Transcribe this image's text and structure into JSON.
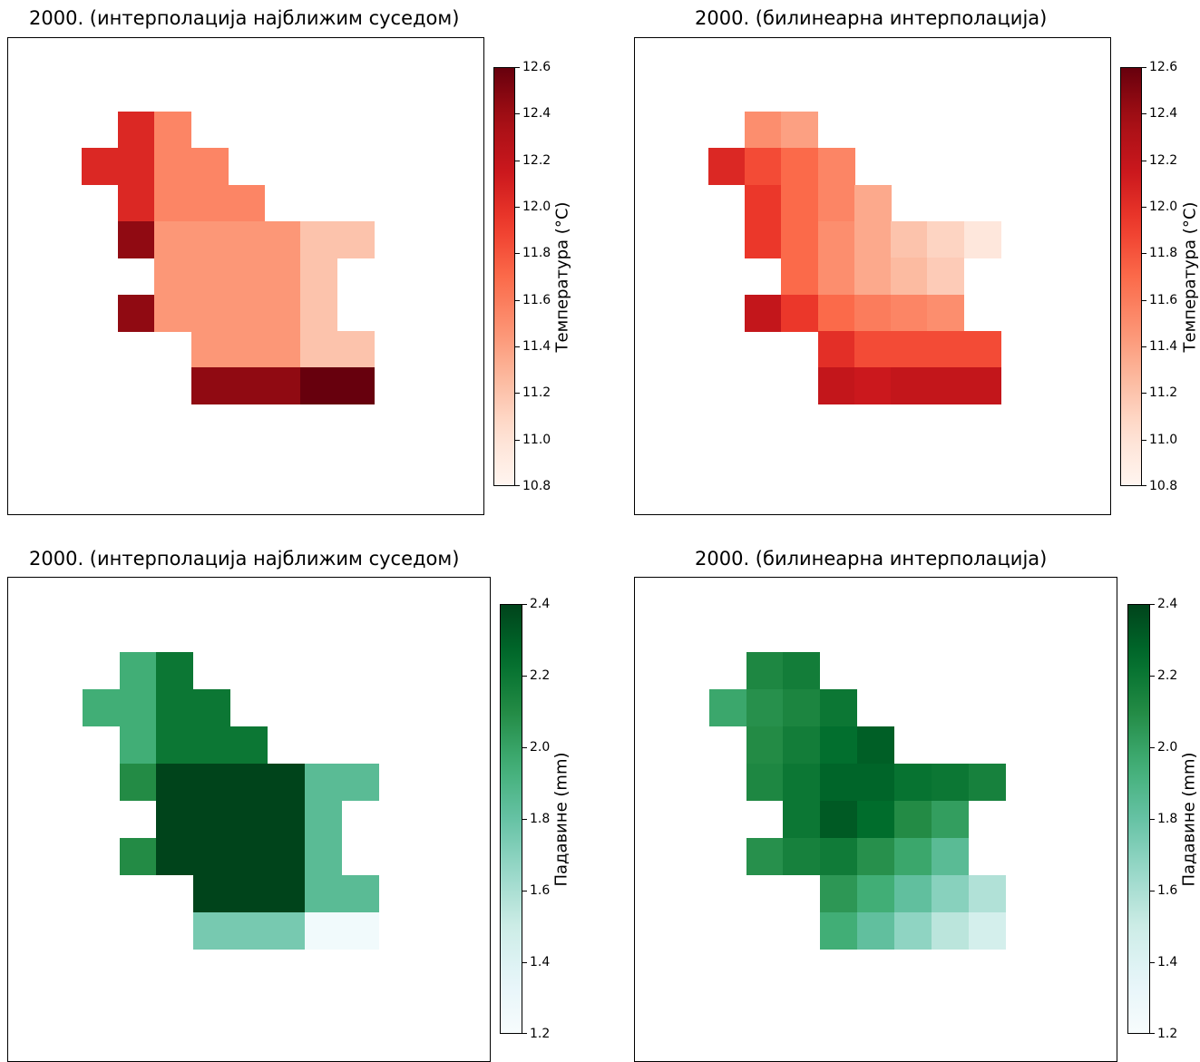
{
  "chart_data": [
    {
      "id": "temp-nn",
      "type": "heatmap",
      "title": "2000. (интерполација најближим суседом)",
      "colorbar_label": "Температура (°C)",
      "colormap": "Reds",
      "vmin": 10.8,
      "vmax": 12.6,
      "colorbar_ticks": [
        "10.8",
        "11.0",
        "11.2",
        "11.4",
        "11.6",
        "11.8",
        "12.0",
        "12.2",
        "12.4",
        "12.6"
      ],
      "grid": [
        [
          null,
          null,
          null,
          null,
          null,
          null,
          null,
          null,
          null,
          null,
          null,
          null,
          null
        ],
        [
          null,
          null,
          null,
          null,
          null,
          null,
          null,
          null,
          null,
          null,
          null,
          null,
          null
        ],
        [
          null,
          null,
          null,
          12.05,
          11.55,
          null,
          null,
          null,
          null,
          null,
          null,
          null,
          null
        ],
        [
          null,
          null,
          12.05,
          12.05,
          11.55,
          11.55,
          null,
          null,
          null,
          null,
          null,
          null,
          null
        ],
        [
          null,
          null,
          null,
          12.05,
          11.55,
          11.55,
          11.55,
          null,
          null,
          null,
          null,
          null,
          null
        ],
        [
          null,
          null,
          null,
          12.45,
          11.45,
          11.45,
          11.45,
          11.45,
          11.2,
          11.2,
          null,
          null,
          null
        ],
        [
          null,
          null,
          null,
          null,
          11.45,
          11.45,
          11.45,
          11.45,
          11.2,
          null,
          null,
          null,
          null
        ],
        [
          null,
          null,
          null,
          12.45,
          11.45,
          11.45,
          11.45,
          11.45,
          11.2,
          null,
          null,
          null,
          null
        ],
        [
          null,
          null,
          null,
          null,
          null,
          11.45,
          11.45,
          11.45,
          11.2,
          11.2,
          null,
          null,
          null
        ],
        [
          null,
          null,
          null,
          null,
          null,
          12.45,
          12.45,
          12.45,
          12.6,
          12.6,
          null,
          null,
          null
        ],
        [
          null,
          null,
          null,
          null,
          null,
          null,
          null,
          null,
          null,
          null,
          null,
          null,
          null
        ],
        [
          null,
          null,
          null,
          null,
          null,
          null,
          null,
          null,
          null,
          null,
          null,
          null,
          null
        ],
        [
          null,
          null,
          null,
          null,
          null,
          null,
          null,
          null,
          null,
          null,
          null,
          null,
          null
        ]
      ]
    },
    {
      "id": "temp-bl",
      "type": "heatmap",
      "title": "2000. (билинеарна интерполација)",
      "colorbar_label": "Температура (°C)",
      "colormap": "Reds",
      "vmin": 10.8,
      "vmax": 12.6,
      "colorbar_ticks": [
        "10.8",
        "11.0",
        "11.2",
        "11.4",
        "11.6",
        "11.8",
        "12.0",
        "12.2",
        "12.4",
        "12.6"
      ],
      "grid": [
        [
          null,
          null,
          null,
          null,
          null,
          null,
          null,
          null,
          null,
          null,
          null,
          null,
          null
        ],
        [
          null,
          null,
          null,
          null,
          null,
          null,
          null,
          null,
          null,
          null,
          null,
          null,
          null
        ],
        [
          null,
          null,
          null,
          11.5,
          11.4,
          null,
          null,
          null,
          null,
          null,
          null,
          null,
          null
        ],
        [
          null,
          null,
          12.05,
          11.85,
          11.7,
          11.55,
          null,
          null,
          null,
          null,
          null,
          null,
          null
        ],
        [
          null,
          null,
          null,
          11.95,
          11.7,
          11.55,
          11.35,
          null,
          null,
          null,
          null,
          null,
          null
        ],
        [
          null,
          null,
          null,
          11.95,
          11.7,
          11.5,
          11.35,
          11.2,
          11.1,
          10.95,
          null,
          null,
          null
        ],
        [
          null,
          null,
          null,
          null,
          11.7,
          11.5,
          11.35,
          11.25,
          11.15,
          null,
          null,
          null,
          null
        ],
        [
          null,
          null,
          null,
          12.2,
          11.95,
          11.7,
          11.6,
          11.55,
          11.5,
          null,
          null,
          null,
          null
        ],
        [
          null,
          null,
          null,
          null,
          null,
          12.0,
          11.85,
          11.85,
          11.85,
          11.85,
          null,
          null,
          null
        ],
        [
          null,
          null,
          null,
          null,
          null,
          12.2,
          12.15,
          12.2,
          12.2,
          12.2,
          null,
          null,
          null
        ],
        [
          null,
          null,
          null,
          null,
          null,
          null,
          null,
          null,
          null,
          null,
          null,
          null,
          null
        ],
        [
          null,
          null,
          null,
          null,
          null,
          null,
          null,
          null,
          null,
          null,
          null,
          null,
          null
        ],
        [
          null,
          null,
          null,
          null,
          null,
          null,
          null,
          null,
          null,
          null,
          null,
          null,
          null
        ]
      ]
    },
    {
      "id": "precip-nn",
      "type": "heatmap",
      "title": "2000. (интерполација најближим суседом)",
      "colorbar_label": "Падавине (mm)",
      "colormap": "Greens",
      "vmin": 1.2,
      "vmax": 2.4,
      "colorbar_ticks": [
        "1.2",
        "1.4",
        "1.6",
        "1.8",
        "2.0",
        "2.2",
        "2.4"
      ],
      "grid": [
        [
          null,
          null,
          null,
          null,
          null,
          null,
          null,
          null,
          null,
          null,
          null,
          null,
          null
        ],
        [
          null,
          null,
          null,
          null,
          null,
          null,
          null,
          null,
          null,
          null,
          null,
          null,
          null
        ],
        [
          null,
          null,
          null,
          1.95,
          2.2,
          null,
          null,
          null,
          null,
          null,
          null,
          null,
          null
        ],
        [
          null,
          null,
          1.95,
          1.95,
          2.2,
          2.2,
          null,
          null,
          null,
          null,
          null,
          null,
          null
        ],
        [
          null,
          null,
          null,
          1.95,
          2.2,
          2.2,
          2.2,
          null,
          null,
          null,
          null,
          null,
          null
        ],
        [
          null,
          null,
          null,
          2.1,
          2.4,
          2.4,
          2.4,
          2.4,
          1.85,
          1.85,
          null,
          null,
          null
        ],
        [
          null,
          null,
          null,
          null,
          2.4,
          2.4,
          2.4,
          2.4,
          1.85,
          null,
          null,
          null,
          null
        ],
        [
          null,
          null,
          null,
          2.1,
          2.4,
          2.4,
          2.4,
          2.4,
          1.85,
          null,
          null,
          null,
          null
        ],
        [
          null,
          null,
          null,
          null,
          null,
          2.4,
          2.4,
          2.4,
          1.85,
          1.85,
          null,
          null,
          null
        ],
        [
          null,
          null,
          null,
          null,
          null,
          1.75,
          1.75,
          1.75,
          1.25,
          1.25,
          null,
          null,
          null
        ],
        [
          null,
          null,
          null,
          null,
          null,
          null,
          null,
          null,
          null,
          null,
          null,
          null,
          null
        ],
        [
          null,
          null,
          null,
          null,
          null,
          null,
          null,
          null,
          null,
          null,
          null,
          null,
          null
        ],
        [
          null,
          null,
          null,
          null,
          null,
          null,
          null,
          null,
          null,
          null,
          null,
          null,
          null
        ]
      ]
    },
    {
      "id": "precip-bl",
      "type": "heatmap",
      "title": "2000. (билинеарна интерполација)",
      "colorbar_label": "Падавине (mm)",
      "colormap": "Greens",
      "vmin": 1.2,
      "vmax": 2.4,
      "colorbar_ticks": [
        "1.2",
        "1.4",
        "1.6",
        "1.8",
        "2.0",
        "2.2",
        "2.4"
      ],
      "grid": [
        [
          null,
          null,
          null,
          null,
          null,
          null,
          null,
          null,
          null,
          null,
          null,
          null,
          null
        ],
        [
          null,
          null,
          null,
          null,
          null,
          null,
          null,
          null,
          null,
          null,
          null,
          null,
          null
        ],
        [
          null,
          null,
          null,
          2.12,
          2.17,
          null,
          null,
          null,
          null,
          null,
          null,
          null,
          null
        ],
        [
          null,
          null,
          1.98,
          2.08,
          2.13,
          2.2,
          null,
          null,
          null,
          null,
          null,
          null,
          null
        ],
        [
          null,
          null,
          null,
          2.1,
          2.17,
          2.24,
          2.3,
          null,
          null,
          null,
          null,
          null,
          null
        ],
        [
          null,
          null,
          null,
          2.12,
          2.2,
          2.28,
          2.28,
          2.22,
          2.2,
          2.15,
          null,
          null,
          null
        ],
        [
          null,
          null,
          null,
          null,
          2.2,
          2.32,
          2.25,
          2.1,
          2.02,
          null,
          null,
          null,
          null
        ],
        [
          null,
          null,
          null,
          2.08,
          2.15,
          2.18,
          2.08,
          1.98,
          1.85,
          null,
          null,
          null,
          null
        ],
        [
          null,
          null,
          null,
          null,
          null,
          2.05,
          1.95,
          1.82,
          1.7,
          1.58,
          null,
          null,
          null
        ],
        [
          null,
          null,
          null,
          null,
          null,
          1.95,
          1.82,
          1.68,
          1.55,
          1.45,
          null,
          null,
          null
        ],
        [
          null,
          null,
          null,
          null,
          null,
          null,
          null,
          null,
          null,
          null,
          null,
          null,
          null
        ],
        [
          null,
          null,
          null,
          null,
          null,
          null,
          null,
          null,
          null,
          null,
          null,
          null,
          null
        ],
        [
          null,
          null,
          null,
          null,
          null,
          null,
          null,
          null,
          null,
          null,
          null,
          null,
          null
        ]
      ]
    }
  ]
}
